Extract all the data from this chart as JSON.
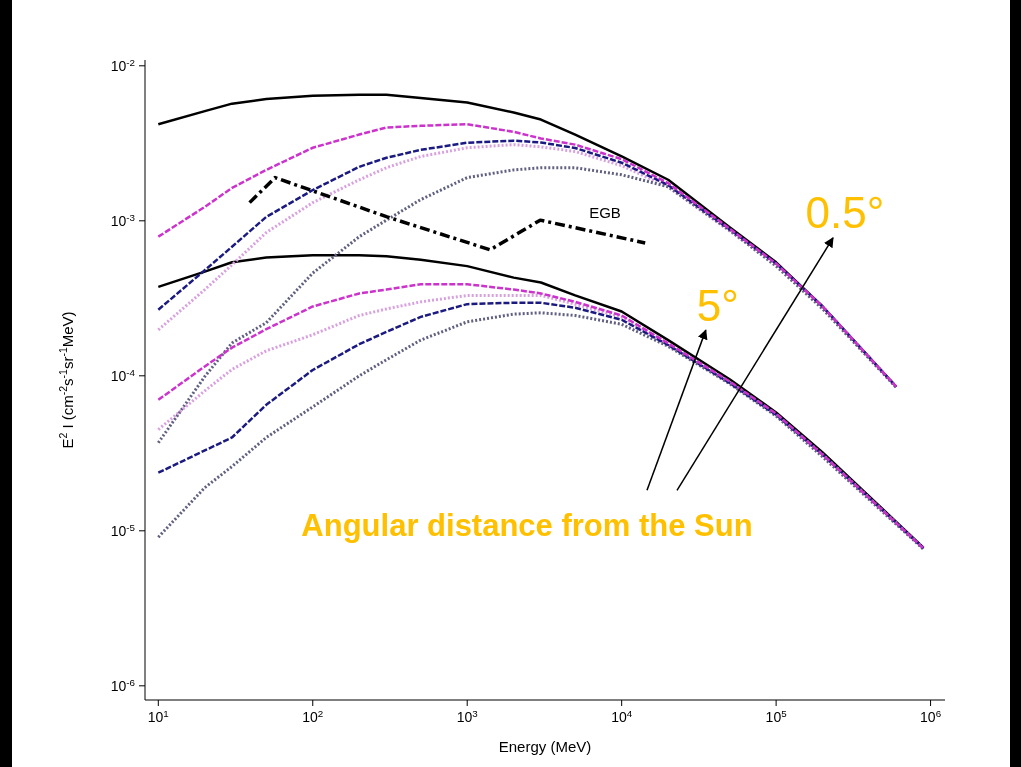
{
  "chart_data": {
    "type": "line",
    "xlabel": "Energy (MeV)",
    "ylabel": "E$^{2}$ I (cm$^{-2}$s$^{-1}$sr$^{-1}$MeV)",
    "log": "xy",
    "grid": false,
    "marker": "none",
    "xlim": [
      8.2,
      1240000
    ],
    "ylim": [
      8.1e-07,
      0.0109
    ],
    "xticks": [
      {
        "value": 10,
        "label": "10$^{1}$"
      },
      {
        "value": 100,
        "label": "10$^{2}$"
      },
      {
        "value": 1000,
        "label": "10$^{3}$"
      },
      {
        "value": 10000,
        "label": "10$^{4}$"
      },
      {
        "value": 100000,
        "label": "10$^{5}$"
      },
      {
        "value": 1000000,
        "label": "10$^{6}$"
      }
    ],
    "yticks": [
      {
        "value": 1e-06,
        "label": "10$^{-6}$"
      },
      {
        "value": 1e-05,
        "label": "10$^{-5}$"
      },
      {
        "value": 0.0001,
        "label": "10$^{-4}$"
      },
      {
        "value": 0.001,
        "label": "10$^{-3}$"
      },
      {
        "value": 0.01,
        "label": "10$^{-2}$"
      }
    ],
    "series": [
      {
        "type": "line",
        "line_style": "solid",
        "color": "#000000",
        "x": [
          10,
          20,
          30,
          50,
          100,
          200,
          300,
          500,
          1000,
          2000,
          3000,
          5000,
          10000,
          20000,
          50000,
          100000,
          200000,
          600000
        ],
        "values": [
          0.0042,
          0.0051,
          0.0057,
          0.0061,
          0.0064,
          0.0065,
          0.0065,
          0.0062,
          0.0058,
          0.005,
          0.0045,
          0.0036,
          0.0026,
          0.00184,
          0.00091,
          0.00054,
          0.00028,
          8.5e-05
        ]
      },
      {
        "type": "line",
        "line_style": "dashed",
        "color": "#cc33cc",
        "x": [
          10,
          20,
          30,
          50,
          100,
          200,
          300,
          500,
          1000,
          2000,
          3000,
          5000,
          10000,
          20000,
          50000,
          100000,
          200000,
          600000
        ],
        "values": [
          0.00079,
          0.00123,
          0.00163,
          0.00213,
          0.00296,
          0.0036,
          0.004,
          0.0041,
          0.0042,
          0.00375,
          0.0034,
          0.0031,
          0.0025,
          0.00175,
          0.00089,
          0.00053,
          0.00028,
          8.5e-05
        ]
      },
      {
        "type": "line",
        "line_style": "dashed",
        "color": "#1a1a80",
        "x": [
          10,
          20,
          30,
          50,
          100,
          200,
          300,
          500,
          1000,
          2000,
          3000,
          5000,
          10000,
          20000,
          50000,
          100000,
          200000,
          600000
        ],
        "values": [
          0.000267,
          0.00048,
          0.00068,
          0.00106,
          0.00158,
          0.00223,
          0.00255,
          0.00287,
          0.00319,
          0.00329,
          0.0032,
          0.00295,
          0.00237,
          0.0017,
          0.00088,
          0.00053,
          0.00028,
          8.5e-05
        ]
      },
      {
        "type": "line",
        "line_style": "dotted",
        "color": "#d9a0e0",
        "x": [
          10,
          20,
          30,
          50,
          100,
          200,
          300,
          500,
          1000,
          2000,
          3000,
          5000,
          10000,
          20000,
          50000,
          100000,
          200000,
          600000
        ],
        "values": [
          0.000198,
          0.00036,
          0.00052,
          0.00084,
          0.00131,
          0.00184,
          0.0022,
          0.0026,
          0.00296,
          0.0031,
          0.003,
          0.0028,
          0.00227,
          0.00165,
          0.00086,
          0.00052,
          0.000275,
          8.4e-05
        ]
      },
      {
        "type": "line",
        "line_style": "dotted",
        "color": "#606080",
        "x": [
          10,
          20,
          30,
          50,
          100,
          200,
          300,
          500,
          1000,
          2000,
          3000,
          5000,
          10000,
          20000,
          50000,
          100000,
          200000,
          600000
        ],
        "values": [
          3.7e-05,
          9.9e-05,
          0.000163,
          0.00022,
          0.00046,
          0.00079,
          0.00101,
          0.00137,
          0.0019,
          0.00213,
          0.0022,
          0.0022,
          0.00198,
          0.00166,
          0.00087,
          0.00051,
          0.00027,
          8.4e-05
        ]
      },
      {
        "type": "line",
        "line_style": "solid",
        "color": "#000000",
        "x": [
          10,
          20,
          30,
          50,
          100,
          200,
          300,
          500,
          1000,
          2000,
          3000,
          5000,
          10000,
          20000,
          50000,
          100000,
          200000,
          900000
        ],
        "values": [
          0.000375,
          0.00047,
          0.00054,
          0.00058,
          0.0006,
          0.0006,
          0.00059,
          0.00056,
          0.00051,
          0.00043,
          0.0004,
          0.00033,
          0.00026,
          0.00017,
          9.5e-05,
          5.8e-05,
          3.2e-05,
          7.8e-06
        ]
      },
      {
        "type": "line",
        "line_style": "dashed",
        "color": "#cc33cc",
        "x": [
          10,
          20,
          30,
          50,
          100,
          200,
          300,
          500,
          1000,
          2000,
          3000,
          5000,
          10000,
          20000,
          50000,
          100000,
          200000,
          900000
        ],
        "values": [
          7e-05,
          0.000115,
          0.000152,
          0.0002,
          0.00028,
          0.00034,
          0.00036,
          0.00039,
          0.00039,
          0.00036,
          0.00034,
          0.0003,
          0.000245,
          0.000162,
          9.2e-05,
          5.7e-05,
          3.1e-05,
          7.7e-06
        ]
      },
      {
        "type": "line",
        "line_style": "dotted",
        "color": "#d9a0e0",
        "x": [
          10,
          20,
          30,
          50,
          100,
          200,
          300,
          500,
          1000,
          2000,
          3000,
          5000,
          10000,
          20000,
          50000,
          100000,
          200000,
          900000
        ],
        "values": [
          4.5e-05,
          8e-05,
          0.00011,
          0.000145,
          0.000184,
          0.000245,
          0.00027,
          0.0003,
          0.00033,
          0.00033,
          0.00033,
          0.00029,
          0.00024,
          0.00016,
          9e-05,
          5.6e-05,
          3.1e-05,
          7.7e-06
        ]
      },
      {
        "type": "line",
        "line_style": "dashed",
        "color": "#1a1a80",
        "x": [
          10,
          20,
          30,
          50,
          100,
          200,
          300,
          500,
          1000,
          2000,
          3000,
          5000,
          10000,
          20000,
          50000,
          100000,
          200000,
          900000
        ],
        "values": [
          2.37e-05,
          3.3e-05,
          4e-05,
          6.5e-05,
          0.000109,
          0.00016,
          0.000192,
          0.00024,
          0.00029,
          0.000296,
          0.000296,
          0.000275,
          0.00023,
          0.000158,
          9e-05,
          5.6e-05,
          3.1e-05,
          7.7e-06
        ]
      },
      {
        "type": "line",
        "line_style": "dotted",
        "color": "#606080",
        "x": [
          10,
          20,
          30,
          50,
          100,
          200,
          300,
          500,
          1000,
          2000,
          3000,
          5000,
          10000,
          20000,
          50000,
          100000,
          200000,
          900000
        ],
        "values": [
          9.1e-06,
          1.9e-05,
          2.6e-05,
          4e-05,
          6.3e-05,
          0.0001,
          0.000127,
          0.00017,
          0.000223,
          0.00025,
          0.000255,
          0.000245,
          0.000215,
          0.000155,
          8.9e-05,
          5.5e-05,
          3e-05,
          7.6e-06
        ]
      },
      {
        "type": "line",
        "line_style": "dashdot",
        "color": "#000000",
        "x": [
          39,
          57,
          303,
          1410,
          2970,
          14200
        ],
        "values": [
          0.00131,
          0.0019,
          0.00106,
          0.00065,
          0.00101,
          0.00072
        ]
      }
    ],
    "annotations": [
      "EGB",
      "5°",
      "0.5°",
      "Angular distance from the Sun"
    ]
  }
}
